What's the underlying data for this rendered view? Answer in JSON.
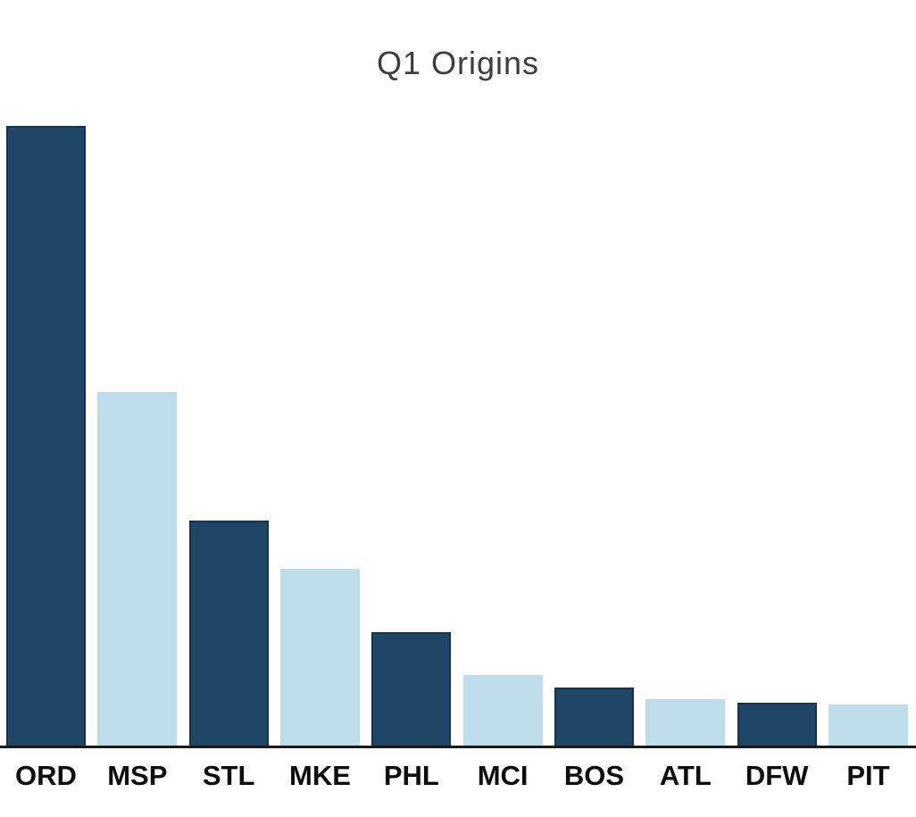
{
  "colors": {
    "background": "#ffffff",
    "dark_bar": "#1f4666",
    "dark_bar_border": "#16324c",
    "light_bar": "#bcdde9",
    "axis_line": "#1a1a1a",
    "title_text": "#3d3d3d",
    "label_text": "#0d0d0d"
  },
  "chart_data": {
    "type": "bar",
    "title": "Q1 Origins",
    "xlabel": "",
    "ylabel": "",
    "categories": [
      "ORD",
      "MSP",
      "STL",
      "MKE",
      "PHL",
      "MCI",
      "BOS",
      "ATL",
      "DFW",
      "PIT"
    ],
    "values": [
      695,
      397,
      253,
      199,
      128,
      80,
      66,
      53,
      49,
      47
    ],
    "units": "relative (no y-axis scale shown; values are measured bar heights in px)",
    "ylim": [
      0,
      730
    ],
    "grid": false,
    "legend": false,
    "y_axis_visible": false,
    "bar_color_pattern": [
      "dark",
      "light",
      "dark",
      "light",
      "dark",
      "light",
      "dark",
      "light",
      "dark",
      "light"
    ]
  }
}
